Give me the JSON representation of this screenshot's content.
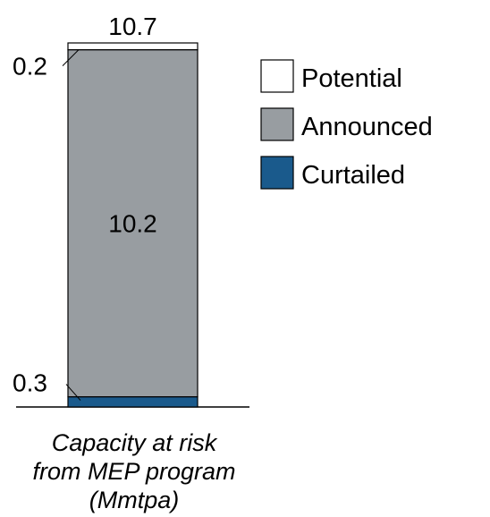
{
  "chart_data": {
    "type": "bar",
    "stacked": true,
    "categories": [
      "Capacity at risk from MEP program (Mmtpa)"
    ],
    "category_label_lines": [
      "Capacity at risk",
      "from MEP program",
      "(Mmtpa)"
    ],
    "series": [
      {
        "name": "Curtailed",
        "values": [
          0.3
        ],
        "color": "#1a5a8c",
        "label": "0.3"
      },
      {
        "name": "Announced",
        "values": [
          10.2
        ],
        "color": "#989da1",
        "label": "10.2"
      },
      {
        "name": "Potential",
        "values": [
          0.2
        ],
        "color": "#ffffff",
        "label": "0.2"
      }
    ],
    "total": 10.7,
    "total_label": "10.7",
    "legend_order": [
      "Potential",
      "Announced",
      "Curtailed"
    ],
    "legend_position": "right",
    "ylim": [
      0,
      10.7
    ],
    "grid": false,
    "title": "",
    "xlabel": "",
    "ylabel": ""
  }
}
